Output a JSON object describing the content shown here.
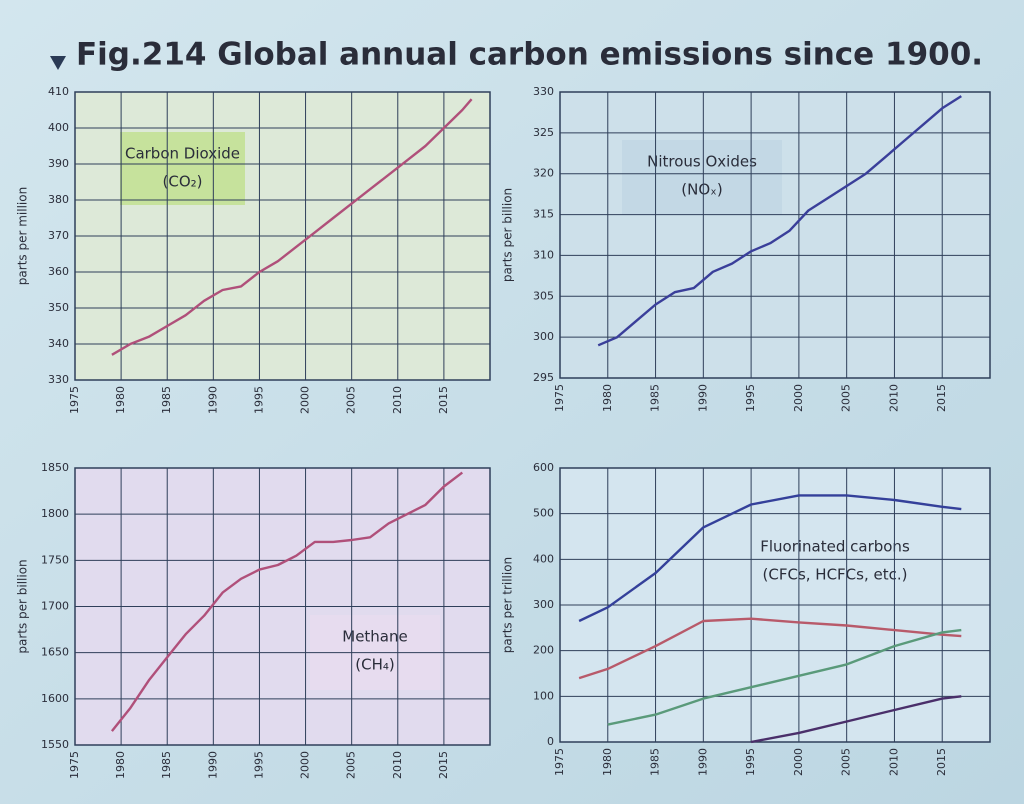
{
  "title": "Fig.214 Global annual carbon emissions since 1900.",
  "chart_data": [
    {
      "type": "line",
      "ylabel": "parts per million",
      "annotation": [
        "Carbon Dioxide",
        "(CO₂)"
      ],
      "x": [
        1979,
        1981,
        1983,
        1985,
        1987,
        1989,
        1991,
        1993,
        1995,
        1997,
        1999,
        2001,
        2003,
        2005,
        2007,
        2009,
        2011,
        2013,
        2015,
        2017,
        2018
      ],
      "series": [
        {
          "color": "#b0507a",
          "values": [
            337,
            340,
            342,
            345,
            348,
            352,
            355,
            356,
            360,
            363,
            367,
            371,
            375,
            379,
            383,
            387,
            391,
            395,
            400,
            405,
            408
          ]
        }
      ],
      "xlim": [
        1975,
        2020
      ],
      "ylim": [
        330,
        410
      ],
      "xticks": [
        1975,
        1980,
        1985,
        1990,
        1995,
        2000,
        2005,
        2010,
        2015
      ],
      "yticks": [
        330,
        340,
        350,
        360,
        370,
        380,
        390,
        400,
        410
      ],
      "grid": true
    },
    {
      "type": "line",
      "ylabel": "parts per billion",
      "annotation": [
        "Nitrous Oxides",
        "(NOₓ)"
      ],
      "x": [
        1979,
        1981,
        1983,
        1985,
        1987,
        1989,
        1991,
        1993,
        1995,
        1997,
        1999,
        2001,
        2003,
        2005,
        2007,
        2009,
        2011,
        2013,
        2015,
        2017
      ],
      "series": [
        {
          "color": "#3a3f9a",
          "values": [
            299,
            300,
            302,
            304,
            305.5,
            306,
            308,
            309,
            310.5,
            311.5,
            313,
            315.5,
            317,
            318.5,
            320,
            322,
            324,
            326,
            328,
            329.5
          ]
        }
      ],
      "xlim": [
        1975,
        2020
      ],
      "ylim": [
        295,
        330
      ],
      "xticks": [
        1975,
        1980,
        1985,
        1990,
        1995,
        2000,
        2005,
        2010,
        2015
      ],
      "yticks": [
        295,
        300,
        305,
        310,
        315,
        320,
        325,
        330
      ],
      "grid": true
    },
    {
      "type": "line",
      "ylabel": "parts per billion",
      "annotation": [
        "Methane",
        "(CH₄)"
      ],
      "x": [
        1979,
        1981,
        1983,
        1985,
        1987,
        1989,
        1991,
        1993,
        1995,
        1997,
        1999,
        2001,
        2003,
        2005,
        2007,
        2009,
        2011,
        2013,
        2015,
        2017
      ],
      "series": [
        {
          "color": "#b0507a",
          "values": [
            1565,
            1590,
            1620,
            1645,
            1670,
            1690,
            1715,
            1730,
            1740,
            1745,
            1755,
            1770,
            1770,
            1772,
            1775,
            1790,
            1800,
            1810,
            1830,
            1845
          ]
        }
      ],
      "xlim": [
        1975,
        2020
      ],
      "ylim": [
        1550,
        1850
      ],
      "xticks": [
        1975,
        1980,
        1985,
        1990,
        1995,
        2000,
        2005,
        2010,
        2015
      ],
      "yticks": [
        1550,
        1600,
        1650,
        1700,
        1750,
        1800,
        1850
      ],
      "grid": true
    },
    {
      "type": "line",
      "ylabel": "parts per trillion",
      "annotation": [
        "Fluorinated carbons",
        "(CFCs, HCFCs, etc.)"
      ],
      "x": [
        1977,
        1980,
        1985,
        1990,
        1995,
        2000,
        2005,
        2010,
        2015,
        2017
      ],
      "series": [
        {
          "color": "#34409a",
          "values": [
            265,
            295,
            370,
            470,
            520,
            540,
            540,
            530,
            515,
            510
          ]
        },
        {
          "color": "#b85a6a",
          "values": [
            140,
            160,
            210,
            265,
            270,
            262,
            255,
            245,
            235,
            232
          ]
        },
        {
          "color": "#5a9a7a",
          "values": [
            null,
            38,
            60,
            95,
            120,
            145,
            170,
            210,
            240,
            245
          ]
        },
        {
          "color": "#4a2f6a",
          "values": [
            null,
            null,
            null,
            null,
            0,
            20,
            45,
            70,
            95,
            100
          ]
        }
      ],
      "xlim": [
        1975,
        2020
      ],
      "ylim": [
        0,
        600
      ],
      "xticks": [
        1975,
        1980,
        1985,
        1990,
        1995,
        2000,
        2005,
        2010,
        2015
      ],
      "yticks": [
        0,
        100,
        200,
        300,
        400,
        500,
        600
      ],
      "grid": true
    }
  ]
}
